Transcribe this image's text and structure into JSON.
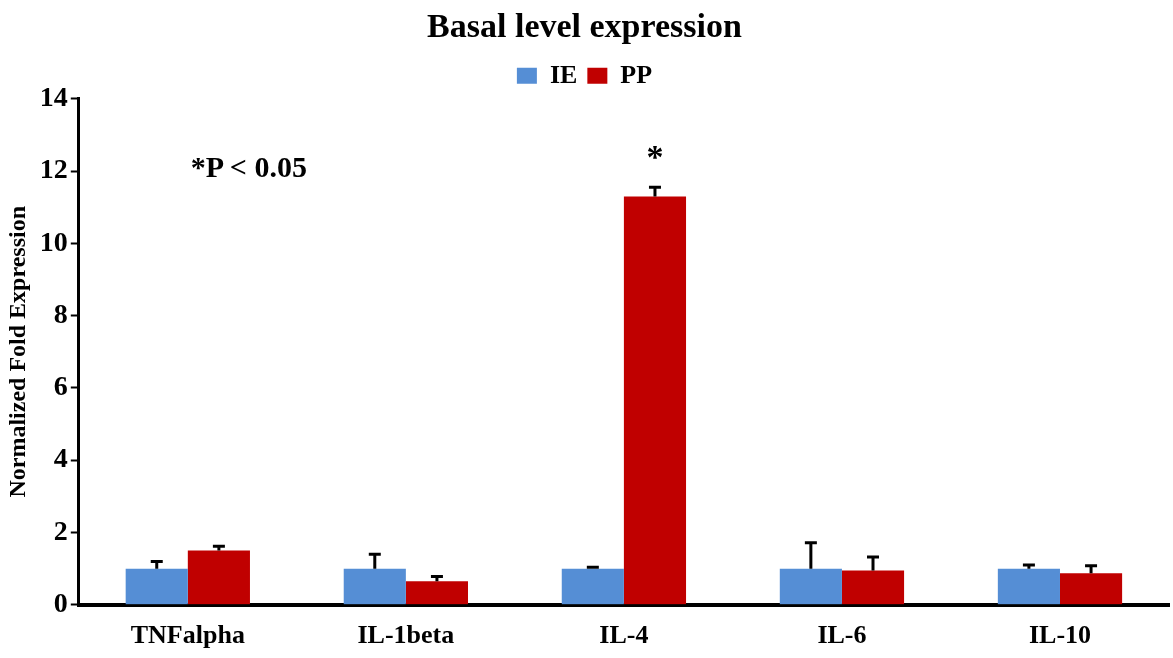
{
  "chart_data": {
    "type": "bar",
    "title": "Basal level expression",
    "ylabel": "Normalized Fold Expression",
    "categories": [
      "TNFalpha",
      "IL-1beta",
      "IL-4",
      "IL-6",
      "IL-10"
    ],
    "series": [
      {
        "name": "IE",
        "color": "#558ed5",
        "values": [
          1,
          1,
          1,
          1,
          1
        ],
        "errors": [
          [
            1,
            1.2
          ],
          [
            1,
            1.4
          ],
          [
            1,
            1.04
          ],
          [
            1,
            1.72
          ],
          [
            1,
            1.1
          ]
        ]
      },
      {
        "name": "PP",
        "color": "#c00000",
        "values": [
          1.5,
          0.65,
          11.3,
          0.95,
          0.87
        ],
        "errors": [
          [
            1.5,
            1.62
          ],
          [
            0.65,
            0.78
          ],
          [
            11.3,
            11.55
          ],
          [
            0.95,
            1.32
          ],
          [
            0.87,
            1.08
          ]
        ]
      }
    ],
    "ylim": [
      0,
      14
    ],
    "yticks": [
      0,
      2,
      4,
      6,
      8,
      10,
      12,
      14
    ],
    "grid": false,
    "legend": "top",
    "annotations": [
      "*P < 0.05",
      "*"
    ]
  }
}
